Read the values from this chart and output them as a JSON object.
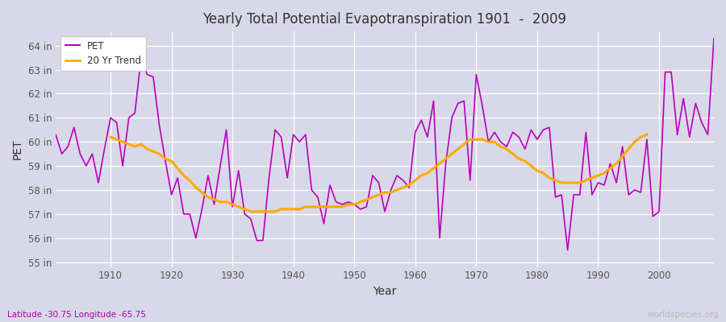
{
  "title": "Yearly Total Potential Evapotranspiration 1901  -  2009",
  "xlabel": "Year",
  "ylabel": "PET",
  "lat_label": "Latitude -30.75 Longitude -65.75",
  "watermark": "worldspecies.org",
  "pet_color": "#bb00bb",
  "trend_color": "#ffaa00",
  "bg_color": "#d8d8e8",
  "plot_bg_color": "#d8d8e8",
  "ylim": [
    54.8,
    64.6
  ],
  "yticks": [
    55,
    56,
    57,
    58,
    59,
    60,
    61,
    62,
    63,
    64
  ],
  "ytick_labels": [
    "55 in",
    "56 in",
    "57 in",
    "58 in",
    "59 in",
    "60 in",
    "61 in",
    "62 in",
    "63 in",
    "64 in"
  ],
  "years": [
    1901,
    1902,
    1903,
    1904,
    1905,
    1906,
    1907,
    1908,
    1909,
    1910,
    1911,
    1912,
    1913,
    1914,
    1915,
    1916,
    1917,
    1918,
    1919,
    1920,
    1921,
    1922,
    1923,
    1924,
    1925,
    1926,
    1927,
    1928,
    1929,
    1930,
    1931,
    1932,
    1933,
    1934,
    1935,
    1936,
    1937,
    1938,
    1939,
    1940,
    1941,
    1942,
    1943,
    1944,
    1945,
    1946,
    1947,
    1948,
    1949,
    1950,
    1951,
    1952,
    1953,
    1954,
    1955,
    1956,
    1957,
    1958,
    1959,
    1960,
    1961,
    1962,
    1963,
    1964,
    1965,
    1966,
    1967,
    1968,
    1969,
    1970,
    1971,
    1972,
    1973,
    1974,
    1975,
    1976,
    1977,
    1978,
    1979,
    1980,
    1981,
    1982,
    1983,
    1984,
    1985,
    1986,
    1987,
    1988,
    1989,
    1990,
    1991,
    1992,
    1993,
    1994,
    1995,
    1996,
    1997,
    1998,
    1999,
    2000,
    2001,
    2002,
    2003,
    2004,
    2005,
    2006,
    2007,
    2008,
    2009
  ],
  "pet_values": [
    60.3,
    59.5,
    59.8,
    60.6,
    59.5,
    59.0,
    59.5,
    58.3,
    59.7,
    61.0,
    60.8,
    59.0,
    61.0,
    61.2,
    63.5,
    62.8,
    62.7,
    60.7,
    59.2,
    57.8,
    58.5,
    57.0,
    57.0,
    56.0,
    57.2,
    58.6,
    57.4,
    59.0,
    60.5,
    57.3,
    58.8,
    57.0,
    56.8,
    55.9,
    55.9,
    58.5,
    60.5,
    60.2,
    58.5,
    60.3,
    60.0,
    60.3,
    58.0,
    57.7,
    56.6,
    58.2,
    57.5,
    57.4,
    57.5,
    57.4,
    57.2,
    57.3,
    58.6,
    58.3,
    57.1,
    58.0,
    58.6,
    58.4,
    58.1,
    60.4,
    60.9,
    60.2,
    61.7,
    56.0,
    59.1,
    61.0,
    61.6,
    61.7,
    58.4,
    62.8,
    61.5,
    60.0,
    60.4,
    60.0,
    59.8,
    60.4,
    60.2,
    59.7,
    60.5,
    60.1,
    60.5,
    60.6,
    57.7,
    57.8,
    55.5,
    57.8,
    57.8,
    60.4,
    57.8,
    58.3,
    58.2,
    59.1,
    58.3,
    59.8,
    57.8,
    58.0,
    57.9,
    60.1,
    56.9,
    57.1,
    62.9,
    62.9,
    60.3,
    61.8,
    60.2,
    61.6,
    60.8,
    60.3,
    64.3
  ],
  "trend_values": [
    null,
    null,
    null,
    null,
    null,
    null,
    null,
    null,
    null,
    60.2,
    60.1,
    60.0,
    59.9,
    59.8,
    59.9,
    59.7,
    59.6,
    59.5,
    59.3,
    59.2,
    58.9,
    58.6,
    58.4,
    58.1,
    57.9,
    57.7,
    57.6,
    57.5,
    57.5,
    57.4,
    57.3,
    57.2,
    57.1,
    57.1,
    57.1,
    57.1,
    57.1,
    57.2,
    57.2,
    57.2,
    57.2,
    57.3,
    57.3,
    57.3,
    57.3,
    57.3,
    57.3,
    57.3,
    57.4,
    57.4,
    57.5,
    57.6,
    57.7,
    57.8,
    57.9,
    57.9,
    58.0,
    58.1,
    58.2,
    58.4,
    58.6,
    58.7,
    58.9,
    59.1,
    59.3,
    59.5,
    59.7,
    59.9,
    60.1,
    60.1,
    60.1,
    60.0,
    60.0,
    59.8,
    59.7,
    59.5,
    59.3,
    59.2,
    59.0,
    58.8,
    58.7,
    58.5,
    58.4,
    58.3,
    58.3,
    58.3,
    58.3,
    58.4,
    58.5,
    58.6,
    58.7,
    58.9,
    59.1,
    59.4,
    59.7,
    60.0,
    60.2,
    60.3,
    null,
    null,
    null,
    null,
    null,
    null,
    null,
    null,
    null,
    null
  ]
}
